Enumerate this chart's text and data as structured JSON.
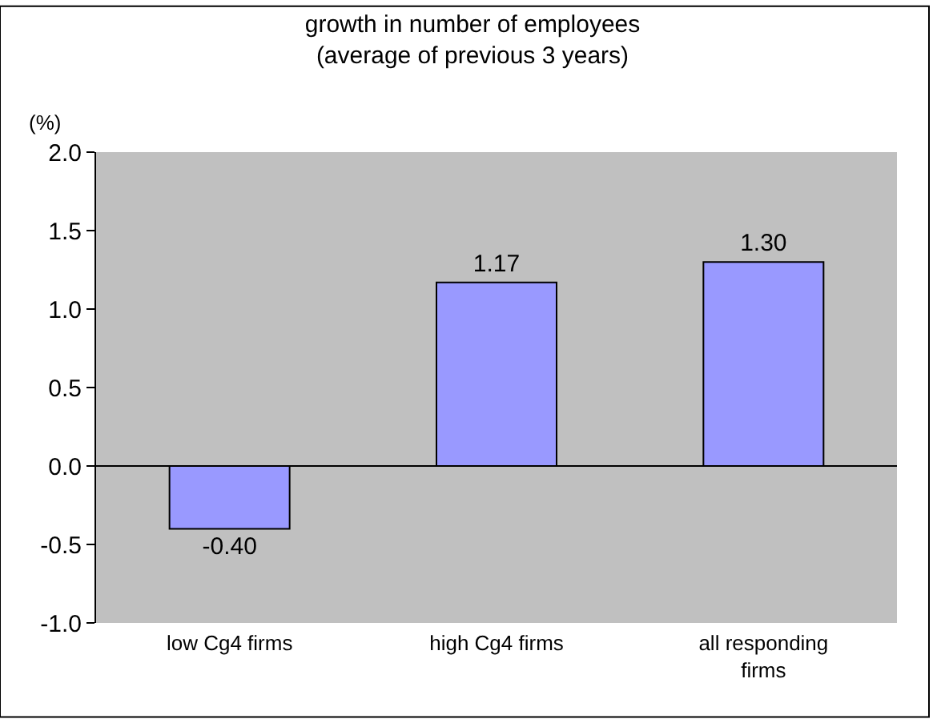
{
  "chart_data": {
    "type": "bar",
    "title": "growth in number of employees\n(average of previous 3 years)",
    "ylabel": "(%)",
    "categories": [
      "low Cg4 firms",
      "high Cg4 firms",
      "all responding firms"
    ],
    "values": [
      -0.4,
      1.17,
      1.3
    ],
    "value_labels": [
      "-0.40",
      "1.17",
      "1.30"
    ],
    "color": "#9999ff",
    "ylim": [
      -1.0,
      2.0
    ],
    "yticks": [
      {
        "value": -1.0,
        "label": "-1.0"
      },
      {
        "value": -0.5,
        "label": "-0.5"
      },
      {
        "value": 0.0,
        "label": "0.0"
      },
      {
        "value": 0.5,
        "label": "0.5"
      },
      {
        "value": 1.0,
        "label": "1.0"
      },
      {
        "value": 1.5,
        "label": "1.5"
      },
      {
        "value": 2.0,
        "label": "2.0"
      }
    ],
    "ref_lines": [
      {
        "axis": "y",
        "value": 0.0,
        "color": "#000000"
      }
    ],
    "grid": false,
    "legend": false
  }
}
